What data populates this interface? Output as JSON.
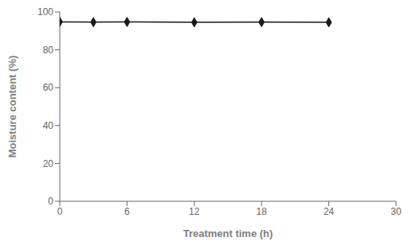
{
  "chart_data": {
    "type": "line",
    "x": [
      0,
      3,
      6,
      12,
      18,
      24
    ],
    "values": [
      94.8,
      94.6,
      94.7,
      94.5,
      94.6,
      94.5
    ],
    "color": "#1a1a1a",
    "marker": "diamond",
    "xlabel": "Treatment time (h)",
    "ylabel": "Moisture content (%)",
    "xlim": [
      0,
      30
    ],
    "ylim": [
      0,
      100
    ],
    "xticks": [
      0,
      6,
      12,
      18,
      24,
      30
    ],
    "yticks": [
      0,
      20,
      40,
      60,
      80,
      100
    ],
    "grid": false
  }
}
